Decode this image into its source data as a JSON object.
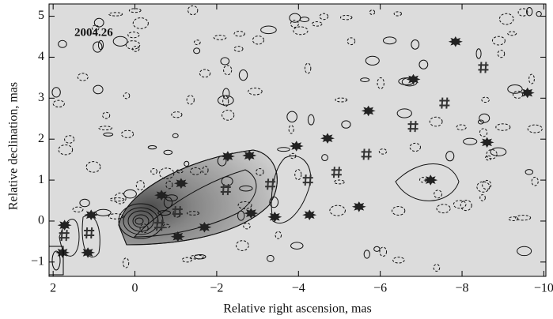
{
  "chart_data": {
    "type": "scatter",
    "annotation": "2004.26",
    "x_label": "Relative right ascension, mas",
    "y_label": "Relative declination, mas",
    "xlim": [
      2.1,
      -10.05
    ],
    "ylim": [
      -1.35,
      5.3
    ],
    "xticks": [
      2,
      0,
      {
        "value": -2,
        "label": "−2"
      },
      {
        "value": -4,
        "label": "−4"
      },
      {
        "value": -6,
        "label": "−6"
      },
      {
        "value": -8,
        "label": "−8"
      },
      {
        "value": -10,
        "label": "−10"
      }
    ],
    "yticks": [
      {
        "value": -1,
        "label": "−1"
      },
      0,
      1,
      2,
      3,
      4,
      5
    ],
    "markers": [
      {
        "symbol": "blob",
        "color": "#222222",
        "x": [
          1.77,
          1.72,
          1.07,
          1.15,
          -0.65,
          -1.13,
          -1.05,
          -1.7,
          -2.27,
          -2.8,
          -2.84,
          -3.42,
          -3.95,
          -4.27,
          -4.71,
          -5.48,
          -5.71,
          -6.81,
          -7.23,
          -7.84,
          -8.61,
          -9.6
        ],
        "y": [
          -0.77,
          -0.1,
          0.15,
          -0.77,
          0.63,
          0.92,
          -0.38,
          -0.15,
          1.58,
          1.6,
          0.19,
          0.1,
          1.83,
          0.15,
          2.02,
          0.35,
          2.69,
          3.46,
          1.0,
          4.38,
          1.92,
          3.13
        ]
      },
      {
        "symbol": "hash",
        "color": "#333333",
        "x": [
          1.72,
          1.11,
          -0.61,
          -1.05,
          -2.23,
          -3.32,
          -4.24,
          -4.94,
          -5.67,
          -6.81,
          -7.58,
          -8.53
        ],
        "y": [
          -0.35,
          -0.29,
          -0.1,
          0.23,
          0.77,
          0.9,
          1.0,
          1.19,
          1.63,
          2.31,
          2.88,
          3.75
        ]
      }
    ]
  }
}
